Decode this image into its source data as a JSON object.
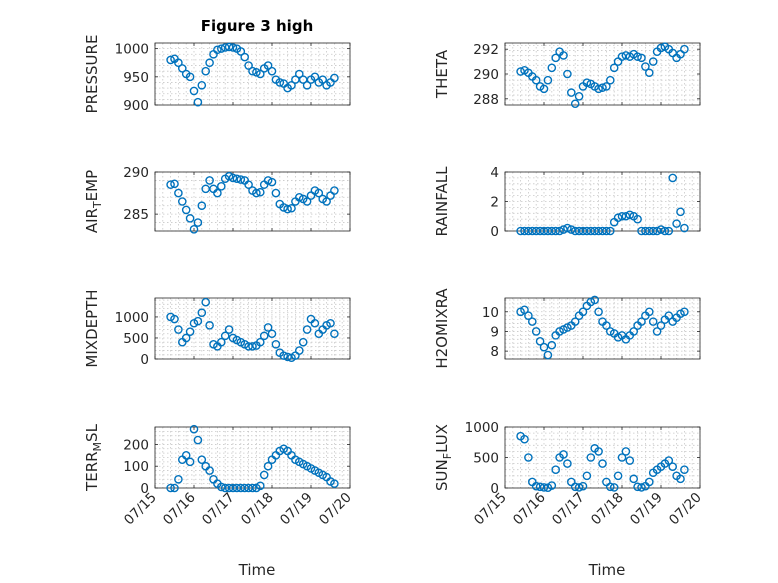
{
  "title": "Figure 3 high",
  "x_label": "Time",
  "chart_data": [
    {
      "type": "scatter",
      "ylabel": "PRESSURE",
      "title": "Figure 3 high",
      "xlabel": "",
      "xlim": [
        0,
        5
      ],
      "ylim": [
        900,
        1010
      ],
      "yticks": [
        900,
        950,
        1000
      ],
      "grid": true,
      "x": [
        0.4,
        0.5,
        0.6,
        0.7,
        0.8,
        0.9,
        1.0,
        1.1,
        1.2,
        1.3,
        1.4,
        1.5,
        1.6,
        1.7,
        1.8,
        1.9,
        2.0,
        2.1,
        2.2,
        2.3,
        2.4,
        2.5,
        2.6,
        2.7,
        2.8,
        2.9,
        3.0,
        3.1,
        3.2,
        3.3,
        3.4,
        3.5,
        3.6,
        3.7,
        3.8,
        3.9,
        4.0,
        4.1,
        4.2,
        4.3,
        4.4,
        4.5,
        4.6
      ],
      "y": [
        980,
        982,
        975,
        965,
        955,
        950,
        925,
        905,
        935,
        960,
        975,
        990,
        998,
        1000,
        1002,
        1003,
        1002,
        1000,
        995,
        985,
        970,
        960,
        958,
        955,
        965,
        970,
        960,
        945,
        940,
        938,
        930,
        935,
        945,
        955,
        945,
        935,
        945,
        950,
        940,
        945,
        935,
        940,
        948
      ]
    },
    {
      "type": "scatter",
      "ylabel": "THETA",
      "xlabel": "",
      "xlim": [
        0,
        5
      ],
      "ylim": [
        287.5,
        292.5
      ],
      "yticks": [
        288,
        290,
        292
      ],
      "grid": true,
      "x": [
        0.4,
        0.5,
        0.6,
        0.7,
        0.8,
        0.9,
        1.0,
        1.1,
        1.2,
        1.3,
        1.4,
        1.5,
        1.6,
        1.7,
        1.8,
        1.9,
        2.0,
        2.1,
        2.2,
        2.3,
        2.4,
        2.5,
        2.6,
        2.7,
        2.8,
        2.9,
        3.0,
        3.1,
        3.2,
        3.3,
        3.4,
        3.5,
        3.6,
        3.7,
        3.8,
        3.9,
        4.0,
        4.1,
        4.2,
        4.3,
        4.4,
        4.5,
        4.6
      ],
      "y": [
        290.2,
        290.3,
        290.1,
        289.8,
        289.5,
        289.0,
        288.8,
        289.5,
        290.5,
        291.3,
        291.8,
        291.5,
        290.0,
        288.5,
        287.6,
        288.2,
        289.0,
        289.3,
        289.2,
        289.0,
        288.8,
        288.9,
        289.0,
        289.5,
        290.5,
        291.0,
        291.4,
        291.5,
        291.4,
        291.6,
        291.4,
        291.3,
        290.6,
        290.1,
        291.0,
        291.8,
        292.1,
        292.2,
        292.0,
        291.7,
        291.3,
        291.6,
        292.0
      ]
    },
    {
      "type": "scatter",
      "ylabel": "AIR_TEMP",
      "xlabel": "",
      "xlim": [
        0,
        5
      ],
      "ylim": [
        283,
        290
      ],
      "yticks": [
        285,
        290
      ],
      "grid": true,
      "x": [
        0.4,
        0.5,
        0.6,
        0.7,
        0.8,
        0.9,
        1.0,
        1.1,
        1.2,
        1.3,
        1.4,
        1.5,
        1.6,
        1.7,
        1.8,
        1.9,
        2.0,
        2.1,
        2.2,
        2.3,
        2.4,
        2.5,
        2.6,
        2.7,
        2.8,
        2.9,
        3.0,
        3.1,
        3.2,
        3.3,
        3.4,
        3.5,
        3.6,
        3.7,
        3.8,
        3.9,
        4.0,
        4.1,
        4.2,
        4.3,
        4.4,
        4.5,
        4.6
      ],
      "y": [
        288.5,
        288.6,
        287.5,
        286.5,
        285.5,
        284.5,
        283.2,
        284.0,
        286.0,
        288.0,
        289.0,
        288.0,
        287.5,
        288.3,
        289.2,
        289.5,
        289.3,
        289.2,
        289.1,
        289.0,
        288.5,
        287.8,
        287.5,
        287.6,
        288.5,
        289.0,
        288.8,
        287.5,
        286.2,
        285.8,
        285.6,
        285.7,
        286.5,
        287.0,
        286.8,
        286.5,
        287.2,
        287.8,
        287.5,
        286.8,
        286.5,
        287.2,
        287.8
      ]
    },
    {
      "type": "scatter",
      "ylabel": "RAINFALL",
      "xlabel": "",
      "xlim": [
        0,
        5
      ],
      "ylim": [
        0,
        4
      ],
      "yticks": [
        0,
        2,
        4
      ],
      "grid": true,
      "x": [
        0.4,
        0.5,
        0.6,
        0.7,
        0.8,
        0.9,
        1.0,
        1.1,
        1.2,
        1.3,
        1.4,
        1.5,
        1.6,
        1.7,
        1.8,
        1.9,
        2.0,
        2.1,
        2.2,
        2.3,
        2.4,
        2.5,
        2.6,
        2.7,
        2.8,
        2.9,
        3.0,
        3.1,
        3.2,
        3.3,
        3.4,
        3.5,
        3.6,
        3.7,
        3.8,
        3.9,
        4.0,
        4.1,
        4.2,
        4.3,
        4.4,
        4.5,
        4.6
      ],
      "y": [
        0,
        0,
        0,
        0,
        0,
        0,
        0,
        0,
        0,
        0,
        0,
        0.1,
        0.2,
        0.1,
        0,
        0,
        0,
        0,
        0,
        0,
        0,
        0,
        0,
        0,
        0.6,
        0.9,
        1.0,
        1.0,
        1.1,
        1.0,
        0.8,
        0,
        0,
        0,
        0,
        0,
        0.1,
        0,
        0,
        3.6,
        0.5,
        1.3,
        0.2
      ]
    },
    {
      "type": "scatter",
      "ylabel": "MIXDEPTH",
      "xlabel": "",
      "xlim": [
        0,
        5
      ],
      "ylim": [
        0,
        1450
      ],
      "yticks": [
        0,
        500,
        1000
      ],
      "grid": true,
      "x": [
        0.4,
        0.5,
        0.6,
        0.7,
        0.8,
        0.9,
        1.0,
        1.1,
        1.2,
        1.3,
        1.4,
        1.5,
        1.6,
        1.7,
        1.8,
        1.9,
        2.0,
        2.1,
        2.2,
        2.3,
        2.4,
        2.5,
        2.6,
        2.7,
        2.8,
        2.9,
        3.0,
        3.1,
        3.2,
        3.3,
        3.4,
        3.5,
        3.6,
        3.7,
        3.8,
        3.9,
        4.0,
        4.1,
        4.2,
        4.3,
        4.4,
        4.5,
        4.6
      ],
      "y": [
        1000,
        950,
        700,
        400,
        500,
        650,
        850,
        900,
        1100,
        1350,
        800,
        350,
        300,
        400,
        550,
        700,
        500,
        450,
        400,
        350,
        300,
        300,
        320,
        400,
        550,
        750,
        600,
        350,
        150,
        80,
        50,
        30,
        80,
        200,
        400,
        700,
        950,
        850,
        600,
        700,
        800,
        850,
        600
      ]
    },
    {
      "type": "scatter",
      "ylabel": "H2OMIXRA",
      "xlabel": "",
      "xlim": [
        0,
        5
      ],
      "ylim": [
        7.6,
        10.7
      ],
      "yticks": [
        8,
        9,
        10
      ],
      "grid": true,
      "x": [
        0.4,
        0.5,
        0.6,
        0.7,
        0.8,
        0.9,
        1.0,
        1.1,
        1.2,
        1.3,
        1.4,
        1.5,
        1.6,
        1.7,
        1.8,
        1.9,
        2.0,
        2.1,
        2.2,
        2.3,
        2.4,
        2.5,
        2.6,
        2.7,
        2.8,
        2.9,
        3.0,
        3.1,
        3.2,
        3.3,
        3.4,
        3.5,
        3.6,
        3.7,
        3.8,
        3.9,
        4.0,
        4.1,
        4.2,
        4.3,
        4.4,
        4.5,
        4.6
      ],
      "y": [
        10.0,
        10.1,
        9.8,
        9.5,
        9.0,
        8.5,
        8.2,
        7.8,
        8.3,
        8.8,
        9.0,
        9.1,
        9.2,
        9.3,
        9.5,
        9.8,
        10.0,
        10.3,
        10.5,
        10.6,
        10.0,
        9.5,
        9.3,
        9.0,
        8.9,
        8.7,
        8.8,
        8.6,
        8.8,
        9.0,
        9.3,
        9.5,
        9.8,
        10.0,
        9.5,
        9.0,
        9.3,
        9.6,
        9.8,
        9.5,
        9.7,
        9.9,
        10.0
      ]
    },
    {
      "type": "scatter",
      "ylabel": "TERR_MSL",
      "xlabel": "",
      "xlim": [
        0,
        5
      ],
      "ylim": [
        0,
        280
      ],
      "yticks": [
        0,
        100,
        200
      ],
      "grid": true,
      "x": [
        0.4,
        0.5,
        0.6,
        0.7,
        0.8,
        0.9,
        1.0,
        1.1,
        1.2,
        1.3,
        1.4,
        1.5,
        1.6,
        1.7,
        1.8,
        1.9,
        2.0,
        2.1,
        2.2,
        2.3,
        2.4,
        2.5,
        2.6,
        2.7,
        2.8,
        2.9,
        3.0,
        3.1,
        3.2,
        3.3,
        3.4,
        3.5,
        3.6,
        3.7,
        3.8,
        3.9,
        4.0,
        4.1,
        4.2,
        4.3,
        4.4,
        4.5,
        4.6
      ],
      "y": [
        0,
        0,
        40,
        130,
        150,
        120,
        270,
        220,
        130,
        100,
        80,
        40,
        20,
        5,
        0,
        0,
        0,
        0,
        0,
        0,
        0,
        0,
        0,
        10,
        60,
        100,
        130,
        150,
        170,
        180,
        170,
        150,
        130,
        120,
        110,
        100,
        90,
        80,
        70,
        60,
        50,
        30,
        20
      ]
    },
    {
      "type": "scatter",
      "ylabel": "SUN_FLUX",
      "xlabel": "",
      "xlim": [
        0,
        5
      ],
      "ylim": [
        0,
        1000
      ],
      "yticks": [
        0,
        500,
        1000
      ],
      "grid": true,
      "x": [
        0.4,
        0.5,
        0.6,
        0.7,
        0.8,
        0.9,
        1.0,
        1.1,
        1.2,
        1.3,
        1.4,
        1.5,
        1.6,
        1.7,
        1.8,
        1.9,
        2.0,
        2.1,
        2.2,
        2.3,
        2.4,
        2.5,
        2.6,
        2.7,
        2.8,
        2.9,
        3.0,
        3.1,
        3.2,
        3.3,
        3.4,
        3.5,
        3.6,
        3.7,
        3.8,
        3.9,
        4.0,
        4.1,
        4.2,
        4.3,
        4.4,
        4.5,
        4.6
      ],
      "y": [
        850,
        800,
        500,
        100,
        30,
        20,
        10,
        5,
        40,
        300,
        500,
        550,
        400,
        100,
        20,
        10,
        30,
        200,
        500,
        650,
        600,
        400,
        100,
        20,
        10,
        200,
        500,
        600,
        450,
        150,
        20,
        10,
        30,
        100,
        250,
        300,
        350,
        400,
        450,
        350,
        200,
        150,
        300
      ]
    }
  ],
  "x_ticks": [
    "07/15",
    "07/16",
    "07/17",
    "07/18",
    "07/19",
    "07/20"
  ],
  "colors": {
    "marker": "#0072BD",
    "grid": "#c8c8c8",
    "axis": "#262626"
  }
}
